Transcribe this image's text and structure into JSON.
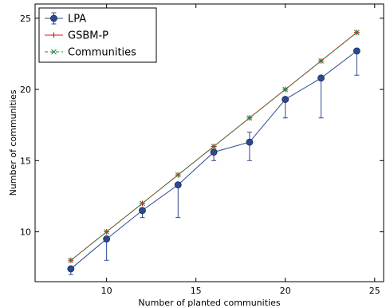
{
  "chart_data": {
    "type": "line",
    "title": "",
    "xlabel": "Number of planted communities",
    "ylabel": "Number of communities",
    "xlim": [
      6,
      25.5
    ],
    "ylim": [
      6.5,
      26
    ],
    "xticks": [
      10,
      15,
      20,
      25
    ],
    "yticks": [
      10,
      15,
      20,
      25
    ],
    "grid": false,
    "legend_position": "top-left",
    "x": [
      8,
      10,
      12,
      14,
      16,
      18,
      20,
      22,
      24
    ],
    "series": [
      {
        "name": "LPA",
        "marker": "circle",
        "line_style": "solid",
        "color": "#2b4a8f",
        "values": [
          7.4,
          9.5,
          11.5,
          13.3,
          15.6,
          16.3,
          19.3,
          20.8,
          22.7
        ],
        "error_low": [
          7.0,
          8.0,
          11.0,
          11.0,
          15.0,
          15.0,
          18.0,
          18.0,
          21.0
        ],
        "error_high": [
          7.4,
          9.5,
          11.5,
          13.3,
          15.6,
          17.0,
          19.3,
          20.8,
          22.7
        ]
      },
      {
        "name": "GSBM-P",
        "marker": "plus",
        "line_style": "solid",
        "color": "#cc2222",
        "values": [
          8,
          10,
          12,
          14,
          16,
          18,
          20,
          22,
          24
        ]
      },
      {
        "name": "Communities",
        "marker": "x",
        "line_style": "dashed",
        "color": "#1f8a3c",
        "values": [
          8,
          10,
          12,
          14,
          16,
          18,
          20,
          22,
          24
        ]
      }
    ]
  }
}
